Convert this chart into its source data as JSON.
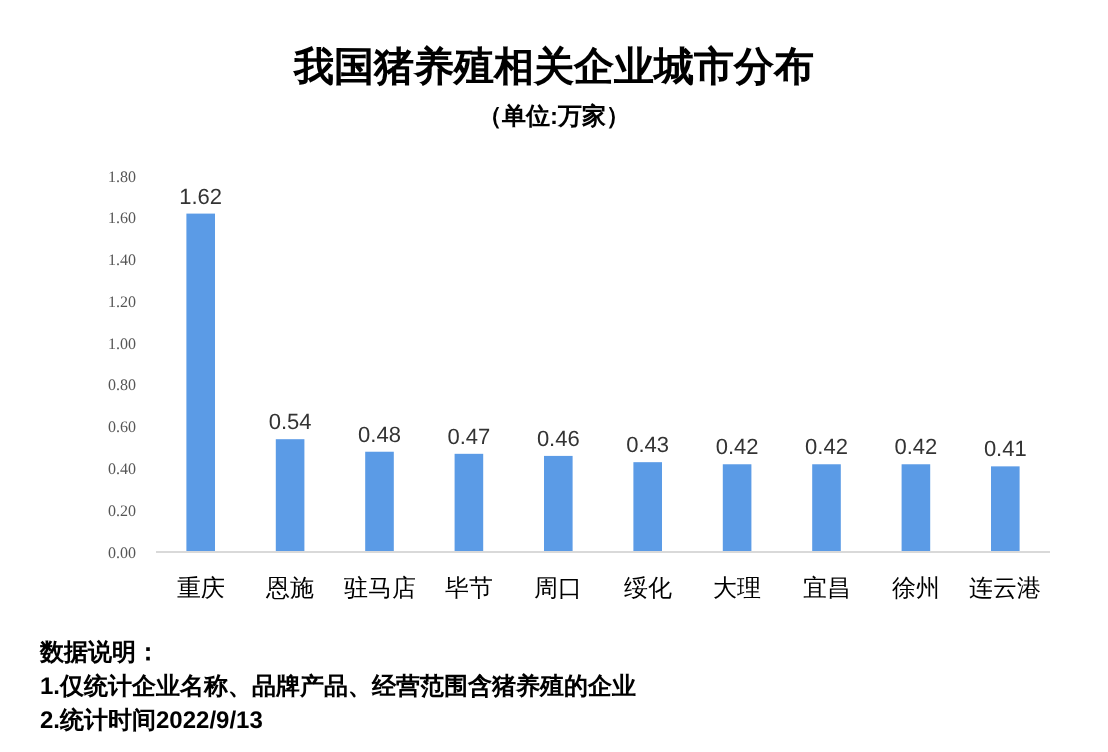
{
  "chart_data": {
    "type": "bar",
    "title": "我国猪养殖相关企业城市分布",
    "subtitle": "（单位:万家）",
    "categories": [
      "重庆",
      "恩施",
      "驻马店",
      "毕节",
      "周口",
      "绥化",
      "大理",
      "宜昌",
      "徐州",
      "连云港"
    ],
    "values": [
      1.62,
      0.54,
      0.48,
      0.47,
      0.46,
      0.43,
      0.42,
      0.42,
      0.42,
      0.41
    ],
    "color": "#5b9be6",
    "ylim": [
      0,
      1.8
    ],
    "yticks": [
      {
        "value": 0,
        "label": "0.00"
      },
      {
        "value": 0.2,
        "label": "0.20"
      },
      {
        "value": 0.4,
        "label": "0.40"
      },
      {
        "value": 0.6,
        "label": "0.60"
      },
      {
        "value": 0.8,
        "label": "0.80"
      },
      {
        "value": 1,
        "label": "1.00"
      },
      {
        "value": 1.2,
        "label": "1.20"
      },
      {
        "value": 1.4,
        "label": "1.40"
      },
      {
        "value": 1.6,
        "label": "1.60"
      },
      {
        "value": 1.8,
        "label": "1.80"
      }
    ],
    "grid": false,
    "data_labels": true,
    "annotations": [
      "数据说明：",
      "1.仅统计企业名称、品牌产品、经营范围含猪养殖的企业",
      "2.统计时间2022/9/13"
    ]
  }
}
